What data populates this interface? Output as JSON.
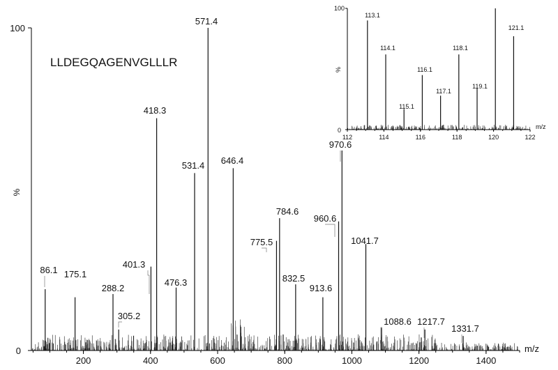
{
  "chart_data": [
    {
      "type": "bar",
      "subtitle": "LLDEGQAGENVGLLLR",
      "xlabel": "m/z",
      "ylabel": "%",
      "xlim": [
        45,
        1500
      ],
      "ylim": [
        0,
        100
      ],
      "x_ticks": [
        "200",
        "400",
        "600",
        "800",
        "1000",
        "1200",
        "1400"
      ],
      "y_ticks": [
        "0",
        "100"
      ],
      "grid": false,
      "peaks": [
        {
          "x": 86.1,
          "y": 19.0,
          "label": "86.1"
        },
        {
          "x": 175.1,
          "y": 16.5,
          "label": "175.1"
        },
        {
          "x": 288.2,
          "y": 17.5,
          "label": "288.2"
        },
        {
          "x": 305.2,
          "y": 6.5,
          "label": "305.2"
        },
        {
          "x": 401.3,
          "y": 26.0,
          "label": "401.3"
        },
        {
          "x": 418.3,
          "y": 72.0,
          "label": "418.3"
        },
        {
          "x": 476.3,
          "y": 19.5,
          "label": "476.3"
        },
        {
          "x": 531.4,
          "y": 55.0,
          "label": "531.4"
        },
        {
          "x": 571.4,
          "y": 100.0,
          "label": "571.4"
        },
        {
          "x": 646.4,
          "y": 56.5,
          "label": "646.4"
        },
        {
          "x": 775.5,
          "y": 34.0,
          "label": "775.5"
        },
        {
          "x": 784.6,
          "y": 41.0,
          "label": "784.6"
        },
        {
          "x": 832.5,
          "y": 20.5,
          "label": "832.5"
        },
        {
          "x": 913.6,
          "y": 16.5,
          "label": "913.6"
        },
        {
          "x": 960.6,
          "y": 40.0,
          "label": "960.6"
        },
        {
          "x": 970.6,
          "y": 62.0,
          "label": "970.6"
        },
        {
          "x": 1041.7,
          "y": 33.0,
          "label": "1041.7"
        },
        {
          "x": 1088.6,
          "y": 7.0,
          "label": "1088.6"
        },
        {
          "x": 1217.7,
          "y": 6.5,
          "label": "1217.7"
        },
        {
          "x": 1331.7,
          "y": 4.5,
          "label": "1331.7"
        }
      ]
    },
    {
      "type": "bar",
      "title": "",
      "xlabel": "m/z",
      "ylabel": "%",
      "xlim": [
        112,
        122
      ],
      "ylim": [
        0,
        100
      ],
      "x_ticks": [
        "112",
        "114",
        "116",
        "118",
        "120",
        "122"
      ],
      "y_ticks": [
        "0",
        "100"
      ],
      "grid": false,
      "peaks": [
        {
          "x": 113.1,
          "y": 90.0,
          "label": "113.1"
        },
        {
          "x": 114.1,
          "y": 62.0,
          "label": "114.1"
        },
        {
          "x": 115.1,
          "y": 17.0,
          "label": "115.1"
        },
        {
          "x": 116.1,
          "y": 45.0,
          "label": "116.1"
        },
        {
          "x": 117.1,
          "y": 28.0,
          "label": "117.1"
        },
        {
          "x": 118.1,
          "y": 62.0,
          "label": "118.1"
        },
        {
          "x": 119.1,
          "y": 34.0,
          "label": "119.1"
        },
        {
          "x": 120.1,
          "y": 100.0,
          "label": ""
        },
        {
          "x": 121.1,
          "y": 77.0,
          "label": "121.1"
        }
      ]
    }
  ]
}
